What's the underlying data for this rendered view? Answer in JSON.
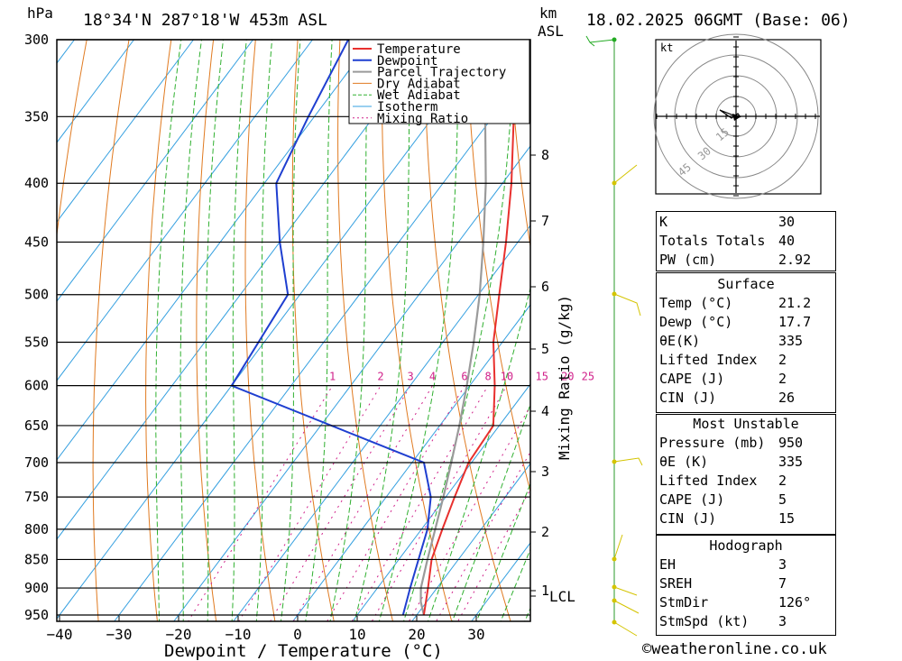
{
  "header": {
    "location": "18°34'N  287°18'W  453m  ASL",
    "pressure_unit": "hPa",
    "height_unit_km": "km",
    "height_unit_asl": "ASL",
    "datetime": "18.02.2025  06GMT  (Base: 06)"
  },
  "chart_data": {
    "type": "line",
    "title": "",
    "xlabel": "Dewpoint / Temperature (°C)",
    "ylabel": "",
    "y2label": "Mixing Ratio (g/kg)",
    "x_ticks": [
      "−40",
      "−30",
      "−20",
      "−10",
      "0",
      "10",
      "20",
      "30"
    ],
    "pressure_levels": [
      300,
      350,
      400,
      450,
      500,
      550,
      600,
      650,
      700,
      750,
      800,
      850,
      900,
      950
    ],
    "km_ticks": [
      "8",
      "7",
      "6",
      "5",
      "4",
      "3",
      "2",
      "1"
    ],
    "lcl_label": "LCL",
    "mixing_ratio_labels": [
      "1",
      "2",
      "3",
      "4",
      "6",
      "8",
      "10",
      "15",
      "20",
      "25"
    ],
    "legend": [
      "Temperature",
      "Dewpoint",
      "Parcel Trajectory",
      "Dry Adiabat",
      "Wet Adiabat",
      "Isotherm",
      "Mixing Ratio"
    ],
    "colors": {
      "temperature": "#e8302e",
      "dewpoint": "#1f3fd0",
      "parcel": "#9a9a9a",
      "dry_adiabat": "#e07a20",
      "wet_adiabat": "#30b030",
      "isotherm": "#35a0e0",
      "mixing_ratio": "#d0208a"
    },
    "temperature_profile": [
      {
        "p": 950,
        "t": 21.2
      },
      {
        "p": 900,
        "t": 18.5
      },
      {
        "p": 850,
        "t": 15.5
      },
      {
        "p": 800,
        "t": 13.5
      },
      {
        "p": 750,
        "t": 11.5
      },
      {
        "p": 700,
        "t": 9.5
      },
      {
        "p": 650,
        "t": 9.0
      },
      {
        "p": 600,
        "t": 4.2
      },
      {
        "p": 550,
        "t": -1.5
      },
      {
        "p": 500,
        "t": -6.5
      },
      {
        "p": 450,
        "t": -12.0
      },
      {
        "p": 400,
        "t": -18.5
      },
      {
        "p": 350,
        "t": -26.5
      },
      {
        "p": 330,
        "t": -30.5
      },
      {
        "p": 300,
        "t": -37.0
      }
    ],
    "dewpoint_profile": [
      {
        "p": 950,
        "t": 17.7
      },
      {
        "p": 900,
        "t": 15.5
      },
      {
        "p": 850,
        "t": 13.3
      },
      {
        "p": 800,
        "t": 11.0
      },
      {
        "p": 750,
        "t": 7.5
      },
      {
        "p": 700,
        "t": 2.0
      },
      {
        "p": 600,
        "t": -40.0
      },
      {
        "p": 500,
        "t": -42.0
      },
      {
        "p": 450,
        "t": -50.0
      },
      {
        "p": 400,
        "t": -58.0
      },
      {
        "p": 350,
        "t": -61.0
      },
      {
        "p": 300,
        "t": -64.0
      }
    ],
    "parcel_profile": [
      {
        "p": 950,
        "t": 21.2
      },
      {
        "p": 925,
        "t": 19.0
      },
      {
        "p": 900,
        "t": 17.3
      },
      {
        "p": 850,
        "t": 14.8
      },
      {
        "p": 800,
        "t": 12.3
      },
      {
        "p": 750,
        "t": 9.6
      },
      {
        "p": 700,
        "t": 6.6
      },
      {
        "p": 650,
        "t": 3.3
      },
      {
        "p": 600,
        "t": -0.5
      },
      {
        "p": 550,
        "t": -4.8
      },
      {
        "p": 500,
        "t": -9.8
      },
      {
        "p": 450,
        "t": -15.8
      },
      {
        "p": 400,
        "t": -22.8
      },
      {
        "p": 350,
        "t": -31.3
      },
      {
        "p": 300,
        "t": -41.5
      }
    ]
  },
  "hodograph": {
    "unit": "kt",
    "ring_labels": [
      "15",
      "30",
      "45"
    ]
  },
  "indices": {
    "rows": [
      {
        "label": "K",
        "value": "30"
      },
      {
        "label": "Totals Totals",
        "value": "40"
      },
      {
        "label": "PW (cm)",
        "value": "2.92"
      }
    ]
  },
  "surface": {
    "title": "Surface",
    "rows": [
      {
        "label": "Temp (°C)",
        "value": "21.2"
      },
      {
        "label": "Dewp (°C)",
        "value": "17.7"
      },
      {
        "label": "θE(K)",
        "value": "335"
      },
      {
        "label": "Lifted Index",
        "value": "2"
      },
      {
        "label": "CAPE (J)",
        "value": "2"
      },
      {
        "label": "CIN (J)",
        "value": "26"
      }
    ]
  },
  "most_unstable": {
    "title": "Most Unstable",
    "rows": [
      {
        "label": "Pressure (mb)",
        "value": "950"
      },
      {
        "label": "θE (K)",
        "value": "335"
      },
      {
        "label": "Lifted Index",
        "value": "2"
      },
      {
        "label": "CAPE (J)",
        "value": "5"
      },
      {
        "label": "CIN (J)",
        "value": "15"
      }
    ]
  },
  "hodograph_table": {
    "title": "Hodograph",
    "rows": [
      {
        "label": "EH",
        "value": "3"
      },
      {
        "label": "SREH",
        "value": "7"
      },
      {
        "label": "StmDir",
        "value": "126°"
      },
      {
        "label": "StmSpd (kt)",
        "value": "3"
      }
    ]
  },
  "footer": "©weatheronline.co.uk"
}
